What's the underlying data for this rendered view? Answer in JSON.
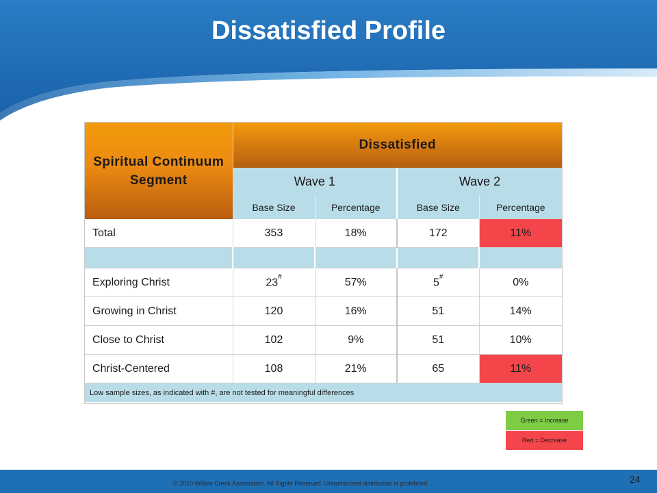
{
  "slide": {
    "title": "Dissatisfied Profile",
    "page_number": "24",
    "copyright": "© 2010 Willow Creek Association.  All Rights Reserved.  Unauthorized distribution is prohibited."
  },
  "table": {
    "segment_header": "Spiritual Continuum Segment",
    "group_header": "Dissatisfied",
    "waves": [
      "Wave 1",
      "Wave 2"
    ],
    "subheaders": [
      "Base Size",
      "Percentage",
      "Base Size",
      "Percentage"
    ],
    "rows": [
      {
        "label": "Total",
        "w1_base": "353",
        "w1_pct": "18%",
        "w2_base": "172",
        "w2_pct": "11%",
        "w2_pct_status": "decrease"
      },
      {
        "label": "Exploring Christ",
        "w1_base": "23",
        "w1_base_mark": "#",
        "w1_pct": "57%",
        "w2_base": "5",
        "w2_base_mark": "#",
        "w2_pct": "0%"
      },
      {
        "label": "Growing in Christ",
        "w1_base": "120",
        "w1_pct": "16%",
        "w2_base": "51",
        "w2_pct": "14%"
      },
      {
        "label": "Close to Christ",
        "w1_base": "102",
        "w1_pct": "9%",
        "w2_base": "51",
        "w2_pct": "10%"
      },
      {
        "label": "Christ-Centered",
        "w1_base": "108",
        "w1_pct": "21%",
        "w2_base": "65",
        "w2_pct": "11%",
        "w2_pct_status": "decrease"
      }
    ],
    "footnote": "Low sample sizes, as indicated with #, are not tested for meaningful differences"
  },
  "legend": {
    "increase": "Green = Increase",
    "decrease": "Red = Decrease"
  },
  "colors": {
    "header_blue": "#1f6fb5",
    "orange": "#ec8a11",
    "light_blue": "#b9dde8",
    "decrease_red": "#f4464a",
    "increase_green": "#7dcc44"
  }
}
